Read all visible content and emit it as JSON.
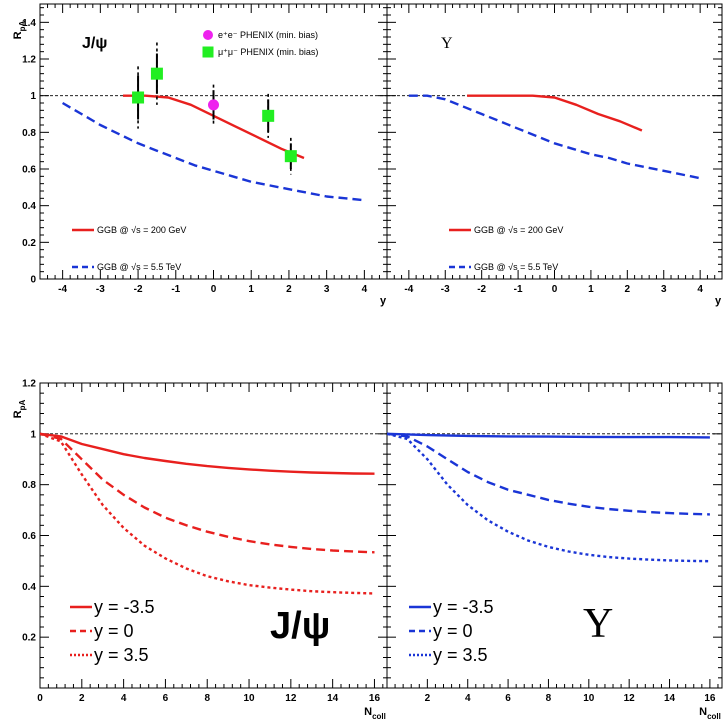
{
  "chart_data": [
    {
      "type": "line",
      "panel": "top-left",
      "label": "J/ψ",
      "xlabel": "y",
      "ylabel": "R_pA",
      "xlim": [
        -4.6,
        4.6
      ],
      "ylim": [
        0,
        1.5
      ],
      "xticks": [
        -4,
        -3,
        -2,
        -1,
        0,
        1,
        2,
        3,
        4
      ],
      "yticks": [
        0,
        0.2,
        0.4,
        0.6,
        0.8,
        1,
        1.2,
        1.4
      ],
      "reference_line": 1,
      "series": [
        {
          "name": "GGB @ √s = 200 GeV",
          "color": "#e8201e",
          "dash": "solid",
          "x": [
            -2.4,
            -1.8,
            -1.2,
            -0.6,
            0,
            0.6,
            1.2,
            1.8,
            2.4
          ],
          "y": [
            1.0,
            1.0,
            0.99,
            0.95,
            0.89,
            0.83,
            0.77,
            0.71,
            0.66
          ]
        },
        {
          "name": "GGB @ √s = 5.5 TeV",
          "color": "#1a35d6",
          "dash": "dashed",
          "x": [
            -4.0,
            -3.5,
            -3.0,
            -2.5,
            -2.0,
            -1.5,
            -1.0,
            -0.5,
            0,
            0.5,
            1.0,
            1.5,
            2.0,
            2.5,
            3.0,
            3.5,
            4.0
          ],
          "y": [
            0.96,
            0.9,
            0.84,
            0.79,
            0.74,
            0.7,
            0.66,
            0.62,
            0.59,
            0.56,
            0.53,
            0.51,
            0.49,
            0.47,
            0.45,
            0.44,
            0.43
          ]
        }
      ],
      "markers": [
        {
          "name": "e⁺e⁻ PHENIX (min. bias)",
          "color": "#ee22ee",
          "shape": "circle",
          "points": [
            {
              "x": 0,
              "y": 0.95,
              "err": 0.08,
              "sys": 0.11
            }
          ]
        },
        {
          "name": "μ⁺μ⁻ PHENIX (min. bias)",
          "color": "#22ee22",
          "shape": "square",
          "points": [
            {
              "x": -2.0,
              "y": 0.99,
              "err": 0.12,
              "sys": 0.17
            },
            {
              "x": -1.5,
              "y": 1.12,
              "err": 0.11,
              "sys": 0.17
            },
            {
              "x": 1.45,
              "y": 0.89,
              "err": 0.09,
              "sys": 0.12
            },
            {
              "x": 2.05,
              "y": 0.67,
              "err": 0.07,
              "sys": 0.1
            }
          ]
        }
      ]
    },
    {
      "type": "line",
      "panel": "top-right",
      "label": "Υ",
      "xlabel": "y",
      "xlim": [
        -4.6,
        4.6
      ],
      "ylim": [
        0,
        1.5
      ],
      "xticks": [
        -4,
        -3,
        -2,
        -1,
        0,
        1,
        2,
        3,
        4
      ],
      "reference_line": 1,
      "series": [
        {
          "name": "GGB @ √s = 200 GeV",
          "color": "#e8201e",
          "dash": "solid",
          "x": [
            -2.4,
            -1.8,
            -1.2,
            -0.6,
            0,
            0.6,
            1.2,
            1.8,
            2.4
          ],
          "y": [
            1.0,
            1.0,
            1.0,
            1.0,
            0.99,
            0.95,
            0.9,
            0.86,
            0.81
          ]
        },
        {
          "name": "GGB @ √s = 5.5 TeV",
          "color": "#1a35d6",
          "dash": "dashed",
          "x": [
            -4.0,
            -3.5,
            -3.0,
            -2.5,
            -2.0,
            -1.5,
            -1.0,
            -0.5,
            0,
            0.5,
            1.0,
            1.5,
            2.0,
            2.5,
            3.0,
            3.5,
            4.0
          ],
          "y": [
            1.0,
            1.0,
            0.98,
            0.94,
            0.9,
            0.86,
            0.82,
            0.78,
            0.74,
            0.71,
            0.68,
            0.66,
            0.63,
            0.61,
            0.59,
            0.57,
            0.55
          ]
        }
      ]
    },
    {
      "type": "line",
      "panel": "bottom-left",
      "label": "J/ψ",
      "xlabel": "N_coll",
      "ylabel": "R_pA",
      "xlim": [
        0,
        16.6
      ],
      "ylim": [
        0,
        1.2
      ],
      "xticks": [
        0,
        2,
        4,
        6,
        8,
        10,
        12,
        14,
        16
      ],
      "yticks": [
        0.2,
        0.4,
        0.6,
        0.8,
        1,
        1.2
      ],
      "reference_line": 1,
      "series": [
        {
          "name": "y = -3.5",
          "color": "#e8201e",
          "dash": "solid",
          "x": [
            0,
            1,
            2,
            3,
            4,
            5,
            6,
            7,
            8,
            9,
            10,
            11,
            12,
            13,
            14,
            15,
            16
          ],
          "y": [
            1.0,
            0.99,
            0.96,
            0.94,
            0.92,
            0.905,
            0.893,
            0.882,
            0.873,
            0.866,
            0.86,
            0.855,
            0.851,
            0.848,
            0.846,
            0.844,
            0.843
          ]
        },
        {
          "name": "y = 0",
          "color": "#e8201e",
          "dash": "dashed",
          "x": [
            0,
            1,
            2,
            3,
            4,
            5,
            6,
            7,
            8,
            9,
            10,
            11,
            12,
            13,
            14,
            15,
            16
          ],
          "y": [
            1.0,
            0.98,
            0.9,
            0.82,
            0.76,
            0.71,
            0.67,
            0.64,
            0.615,
            0.595,
            0.578,
            0.565,
            0.555,
            0.547,
            0.541,
            0.537,
            0.534
          ]
        },
        {
          "name": "y = 3.5",
          "color": "#e8201e",
          "dash": "dotted",
          "x": [
            0,
            1,
            2,
            3,
            4,
            5,
            6,
            7,
            8,
            9,
            10,
            11,
            12,
            13,
            14,
            15,
            16
          ],
          "y": [
            1.0,
            0.97,
            0.84,
            0.72,
            0.63,
            0.56,
            0.51,
            0.47,
            0.44,
            0.42,
            0.405,
            0.395,
            0.387,
            0.381,
            0.377,
            0.374,
            0.372
          ]
        }
      ]
    },
    {
      "type": "line",
      "panel": "bottom-right",
      "label": "Υ",
      "xlabel": "N_coll",
      "xlim": [
        0,
        16.6
      ],
      "ylim": [
        0,
        1.2
      ],
      "xticks": [
        2,
        4,
        6,
        8,
        10,
        12,
        14,
        16
      ],
      "reference_line": 1,
      "series": [
        {
          "name": "y = -3.5",
          "color": "#1a35d6",
          "dash": "solid",
          "x": [
            0,
            2,
            4,
            6,
            8,
            10,
            12,
            14,
            16
          ],
          "y": [
            1.0,
            0.995,
            0.992,
            0.99,
            0.989,
            0.988,
            0.987,
            0.987,
            0.986
          ]
        },
        {
          "name": "y = 0",
          "color": "#1a35d6",
          "dash": "dashed",
          "x": [
            0,
            1,
            2,
            3,
            4,
            5,
            6,
            7,
            8,
            9,
            10,
            11,
            12,
            13,
            14,
            15,
            16
          ],
          "y": [
            1.0,
            0.99,
            0.95,
            0.9,
            0.85,
            0.81,
            0.78,
            0.76,
            0.74,
            0.725,
            0.713,
            0.704,
            0.697,
            0.692,
            0.688,
            0.685,
            0.683
          ]
        },
        {
          "name": "y = 3.5",
          "color": "#1a35d6",
          "dash": "dotted",
          "x": [
            0,
            1,
            2,
            3,
            4,
            5,
            6,
            7,
            8,
            9,
            10,
            11,
            12,
            13,
            14,
            15,
            16
          ],
          "y": [
            1.0,
            0.98,
            0.9,
            0.8,
            0.72,
            0.66,
            0.615,
            0.58,
            0.555,
            0.537,
            0.524,
            0.515,
            0.509,
            0.505,
            0.502,
            0.5,
            0.499
          ]
        }
      ]
    }
  ]
}
